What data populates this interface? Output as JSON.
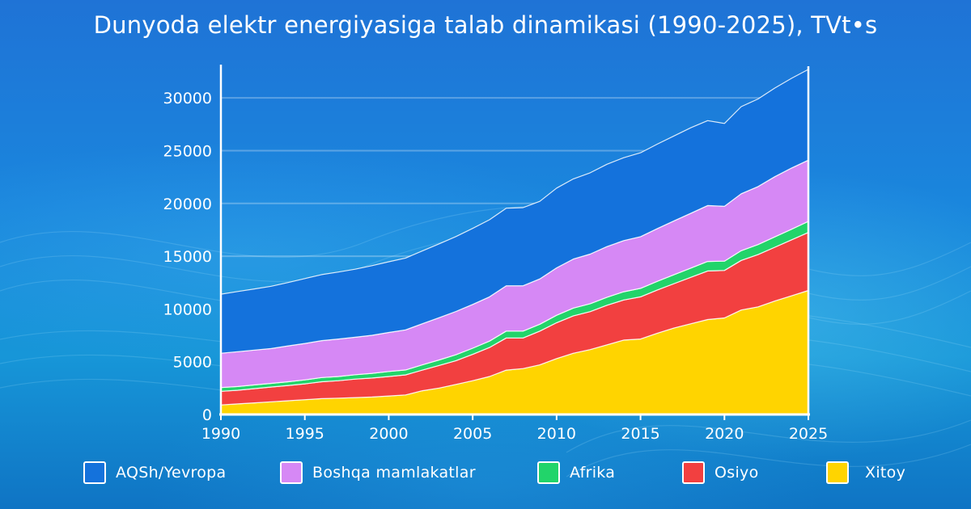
{
  "title": "Dunyoda elektr energiyasiga talab dinamikasi (1990-2025), TVt•s",
  "chart_data": {
    "type": "area",
    "stacked": true,
    "x": [
      1990,
      1991,
      1992,
      1993,
      1994,
      1995,
      1996,
      1997,
      1998,
      1999,
      2000,
      2001,
      2002,
      2003,
      2004,
      2005,
      2006,
      2007,
      2008,
      2009,
      2010,
      2011,
      2012,
      2013,
      2014,
      2015,
      2016,
      2017,
      2018,
      2019,
      2020,
      2021,
      2022,
      2023,
      2024,
      2025
    ],
    "xticks": [
      1990,
      1995,
      2000,
      2005,
      2010,
      2015,
      2020,
      2025
    ],
    "yticks": [
      0,
      5000,
      10000,
      15000,
      20000,
      25000,
      30000
    ],
    "ylim": [
      0,
      33000
    ],
    "xlim": [
      1990,
      2025
    ],
    "grid": "horizontal",
    "legend_position": "bottom",
    "series": [
      {
        "name": "Xitoy",
        "color": "#ffd400",
        "values": [
          900,
          1000,
          1100,
          1200,
          1300,
          1400,
          1500,
          1550,
          1600,
          1650,
          1750,
          1850,
          2250,
          2500,
          2850,
          3200,
          3600,
          4200,
          4350,
          4700,
          5300,
          5800,
          6150,
          6600,
          7050,
          7150,
          7700,
          8200,
          8600,
          9000,
          9150,
          9900,
          10200,
          10750,
          11250,
          11750
        ]
      },
      {
        "name": "Osiyo",
        "color": "#f24040",
        "values": [
          1300,
          1300,
          1350,
          1400,
          1450,
          1500,
          1600,
          1650,
          1750,
          1800,
          1850,
          1900,
          1950,
          2150,
          2250,
          2500,
          2750,
          3050,
          2900,
          3200,
          3400,
          3550,
          3600,
          3750,
          3800,
          4000,
          4100,
          4200,
          4400,
          4600,
          4500,
          4700,
          4950,
          5100,
          5300,
          5500
        ]
      },
      {
        "name": "Afrika",
        "color": "#22d46a",
        "values": [
          350,
          350,
          350,
          350,
          350,
          380,
          400,
          400,
          420,
          450,
          470,
          470,
          500,
          520,
          560,
          580,
          600,
          650,
          650,
          650,
          700,
          730,
          750,
          760,
          780,
          800,
          820,
          850,
          870,
          900,
          880,
          920,
          950,
          980,
          1010,
          1050
        ]
      },
      {
        "name": "Boshqa mamlakatlar",
        "color": "#d688f5",
        "values": [
          3250,
          3300,
          3300,
          3300,
          3400,
          3450,
          3500,
          3550,
          3550,
          3600,
          3700,
          3800,
          3900,
          4000,
          4100,
          4150,
          4200,
          4300,
          4300,
          4300,
          4500,
          4650,
          4700,
          4800,
          4850,
          4900,
          5000,
          5100,
          5200,
          5300,
          5200,
          5400,
          5500,
          5700,
          5800,
          5800
        ]
      },
      {
        "name": "AQSh/Yevropa",
        "color": "#1472dc",
        "values": [
          5600,
          5700,
          5800,
          5900,
          6000,
          6150,
          6250,
          6350,
          6450,
          6600,
          6700,
          6800,
          6900,
          7000,
          7100,
          7200,
          7300,
          7350,
          7400,
          7350,
          7550,
          7600,
          7700,
          7800,
          7850,
          7950,
          8000,
          8050,
          8100,
          8050,
          7850,
          8250,
          8300,
          8400,
          8500,
          8600
        ]
      }
    ]
  },
  "legend": [
    {
      "label": "AQSh/Yevropa",
      "color": "#1472dc"
    },
    {
      "label": "Boshqa mamlakatlar",
      "color": "#d688f5"
    },
    {
      "label": "Afrika",
      "color": "#22d46a"
    },
    {
      "label": "Osiyo",
      "color": "#f24040"
    },
    {
      "label": "Xitoy",
      "color": "#ffd400"
    }
  ]
}
